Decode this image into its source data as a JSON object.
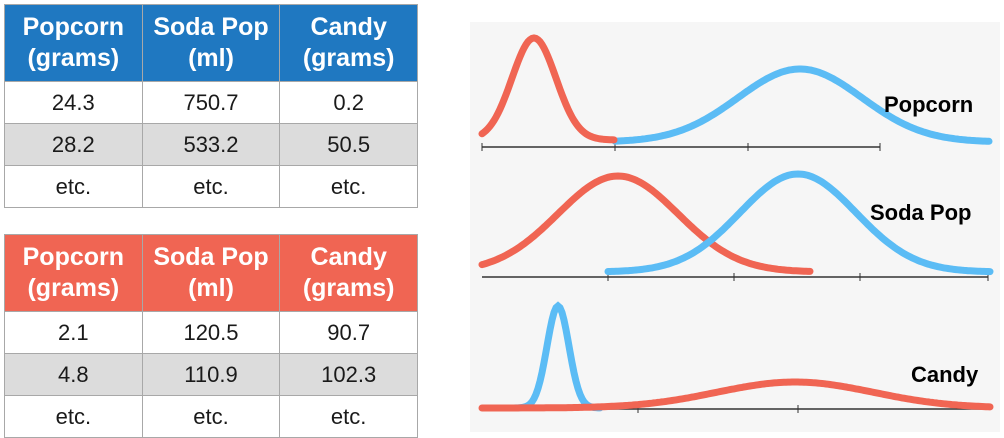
{
  "tables": [
    {
      "id": "blue",
      "header_color": "#1f78c1",
      "headers": [
        [
          "Popcorn",
          "(grams)"
        ],
        [
          "Soda Pop",
          "(ml)"
        ],
        [
          "Candy",
          "(grams)"
        ]
      ],
      "rows": [
        [
          "24.3",
          "750.7",
          "0.2"
        ],
        [
          "28.2",
          "533.2",
          "50.5"
        ],
        [
          "etc.",
          "etc.",
          "etc."
        ]
      ]
    },
    {
      "id": "red",
      "header_color": "#f06553",
      "headers": [
        [
          "Popcorn",
          "(grams)"
        ],
        [
          "Soda Pop",
          "(ml)"
        ],
        [
          "Candy",
          "(grams)"
        ]
      ],
      "rows": [
        [
          "2.1",
          "120.5",
          "90.7"
        ],
        [
          "4.8",
          "110.9",
          "102.3"
        ],
        [
          "etc.",
          "etc.",
          "etc."
        ]
      ]
    }
  ],
  "distribution_panels": [
    {
      "label": "Popcorn"
    },
    {
      "label": "Soda Pop"
    },
    {
      "label": "Candy"
    }
  ],
  "colors": {
    "blue_curve": "#5bbcf5",
    "red_curve": "#f06553",
    "axis": "#333333",
    "panel_background": "#f6f6f6"
  }
}
